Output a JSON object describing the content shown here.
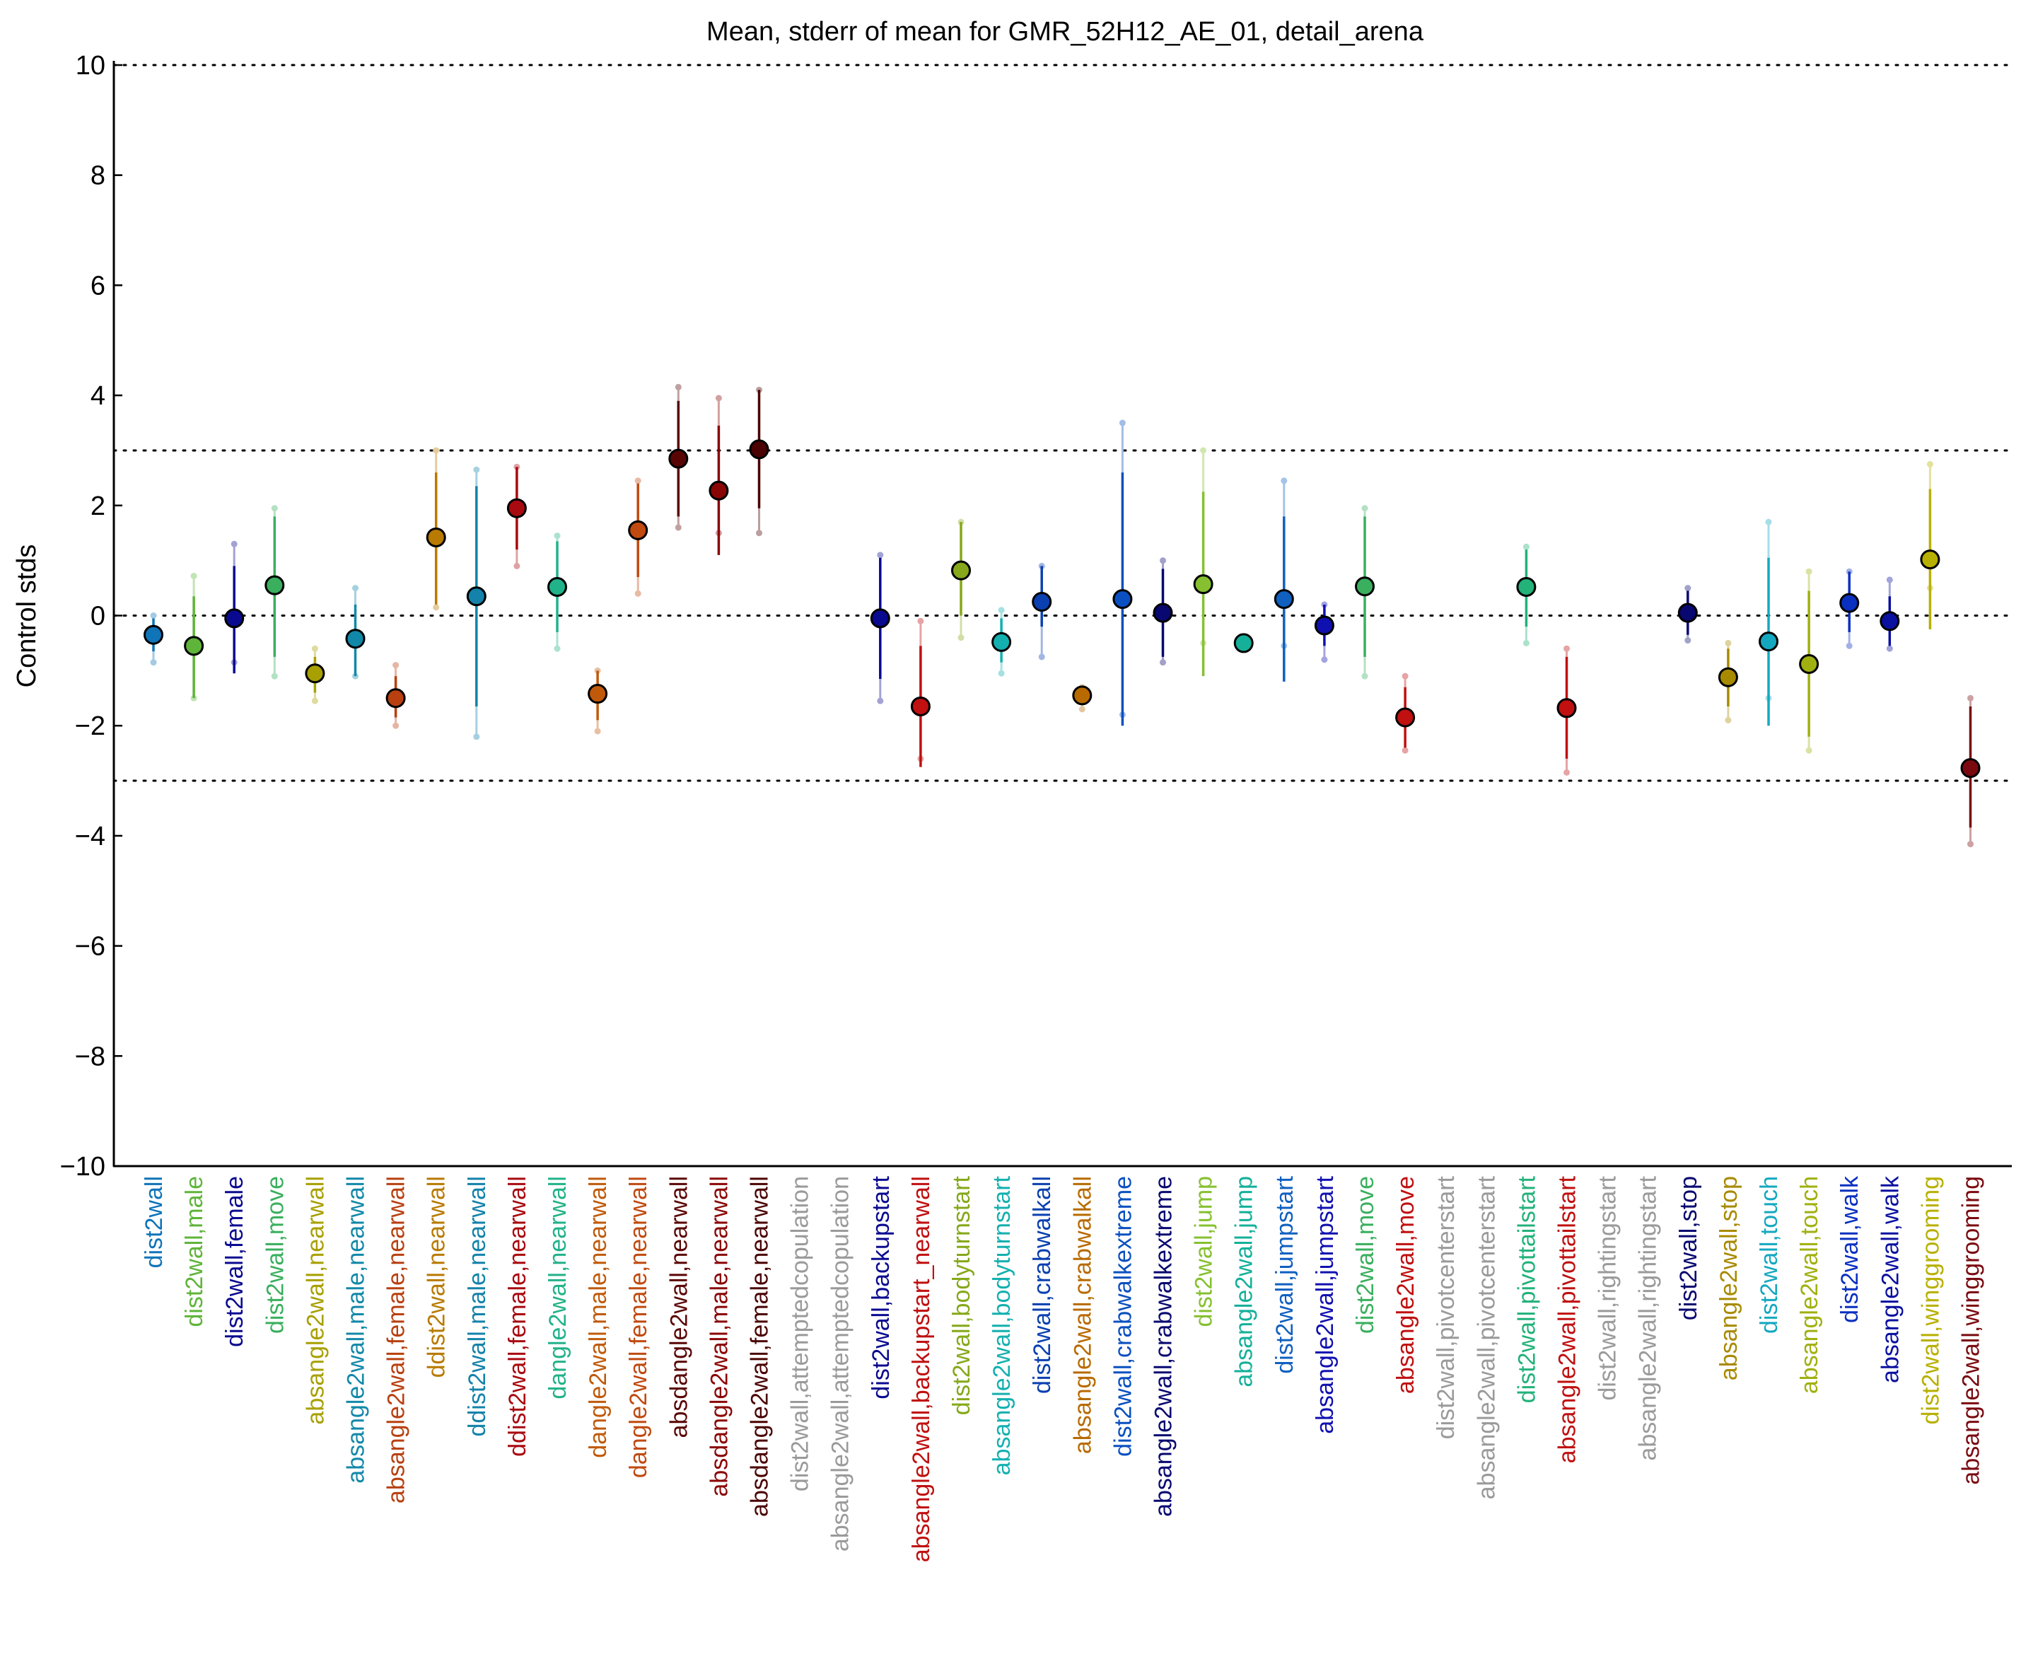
{
  "chart_data": {
    "type": "scatter",
    "title": "Mean, stderr of mean for GMR_52H12_AE_01, detail_arena",
    "ylabel": "Control stds",
    "xlabel": "",
    "ylim": [
      -10,
      10
    ],
    "yticks": [
      10,
      8,
      6,
      4,
      2,
      0,
      -2,
      -4,
      -6,
      -8,
      -10
    ],
    "ytick_labels": [
      "10",
      "8",
      "6",
      "4",
      "2",
      "0",
      "−2",
      "−4",
      "−6",
      "−8",
      "−10"
    ],
    "reference_lines": [
      10,
      3,
      0,
      -3,
      -10
    ],
    "grid": false,
    "points": [
      {
        "label": "dist2wall",
        "mean": -0.35,
        "err_lo": -0.65,
        "err_hi": -0.05,
        "ext_lo": -0.85,
        "ext_hi": 0.0,
        "color": "#0f74b8"
      },
      {
        "label": "dist2wall,male",
        "mean": -0.55,
        "err_lo": -1.5,
        "err_hi": 0.35,
        "ext_lo": -1.5,
        "ext_hi": 0.72,
        "color": "#5fb43a"
      },
      {
        "label": "dist2wall,female",
        "mean": -0.05,
        "err_lo": -1.05,
        "err_hi": 0.9,
        "ext_lo": -0.85,
        "ext_hi": 1.3,
        "color": "#0a0a90"
      },
      {
        "label": "dist2wall,move",
        "mean": 0.55,
        "err_lo": -0.75,
        "err_hi": 1.8,
        "ext_lo": -1.1,
        "ext_hi": 1.95,
        "color": "#3aaf5e"
      },
      {
        "label": "absangle2wall,nearwall",
        "mean": -1.05,
        "err_lo": -1.4,
        "err_hi": -0.75,
        "ext_lo": -1.55,
        "ext_hi": -0.6,
        "color": "#a8a000"
      },
      {
        "label": "absangle2wall,male,nearwall",
        "mean": -0.42,
        "err_lo": -1.1,
        "err_hi": 0.2,
        "ext_lo": -1.1,
        "ext_hi": 0.5,
        "color": "#1288a8"
      },
      {
        "label": "absangle2wall,female,nearwall",
        "mean": -1.5,
        "err_lo": -1.85,
        "err_hi": -1.1,
        "ext_lo": -2.0,
        "ext_hi": -0.9,
        "color": "#b84010"
      },
      {
        "label": "ddist2wall,nearwall",
        "mean": 1.42,
        "err_lo": 0.2,
        "err_hi": 2.6,
        "ext_lo": 0.15,
        "ext_hi": 3.0,
        "color": "#b87a00"
      },
      {
        "label": "ddist2wall,male,nearwall",
        "mean": 0.35,
        "err_lo": -1.65,
        "err_hi": 2.35,
        "ext_lo": -2.2,
        "ext_hi": 2.65,
        "color": "#1482aa"
      },
      {
        "label": "ddist2wall,female,nearwall",
        "mean": 1.95,
        "err_lo": 1.2,
        "err_hi": 2.7,
        "ext_lo": 0.9,
        "ext_hi": 2.7,
        "color": "#a80a10"
      },
      {
        "label": "dangle2wall,nearwall",
        "mean": 0.52,
        "err_lo": -0.3,
        "err_hi": 1.35,
        "ext_lo": -0.6,
        "ext_hi": 1.45,
        "color": "#22b28a"
      },
      {
        "label": "dangle2wall,male,nearwall",
        "mean": -1.42,
        "err_lo": -1.9,
        "err_hi": -1.0,
        "ext_lo": -2.1,
        "ext_hi": -1.0,
        "color": "#c05a0a"
      },
      {
        "label": "dangle2wall,female,nearwall",
        "mean": 1.55,
        "err_lo": 0.7,
        "err_hi": 2.4,
        "ext_lo": 0.4,
        "ext_hi": 2.45,
        "color": "#c04a10"
      },
      {
        "label": "absdangle2wall,nearwall",
        "mean": 2.85,
        "err_lo": 1.8,
        "err_hi": 3.9,
        "ext_lo": 1.6,
        "ext_hi": 4.15,
        "color": "#5a0505"
      },
      {
        "label": "absdangle2wall,male,nearwall",
        "mean": 2.27,
        "err_lo": 1.1,
        "err_hi": 3.45,
        "ext_lo": 1.5,
        "ext_hi": 3.95,
        "color": "#8a0505"
      },
      {
        "label": "absdangle2wall,female,nearwall",
        "mean": 3.02,
        "err_lo": 1.95,
        "err_hi": 4.1,
        "ext_lo": 1.5,
        "ext_hi": 4.1,
        "color": "#4a0202"
      },
      {
        "label": "dist2wall,attemptedcopulation",
        "mean": null,
        "color": "#9a9a9a"
      },
      {
        "label": "absangle2wall,attemptedcopulation",
        "mean": null,
        "color": "#9a9a9a"
      },
      {
        "label": "dist2wall,backupstart",
        "mean": -0.05,
        "err_lo": -1.15,
        "err_hi": 1.05,
        "ext_lo": -1.55,
        "ext_hi": 1.1,
        "color": "#0a0a90"
      },
      {
        "label": "absangle2wall,backupstart_nearwall",
        "mean": -1.65,
        "err_lo": -2.75,
        "err_hi": -0.55,
        "ext_lo": -2.6,
        "ext_hi": -0.1,
        "color": "#c01010"
      },
      {
        "label": "dist2wall,bodyturnstart",
        "mean": 0.82,
        "err_lo": 0.0,
        "err_hi": 1.7,
        "ext_lo": -0.4,
        "ext_hi": 1.7,
        "color": "#86a81a"
      },
      {
        "label": "absangle2wall,bodyturnstart",
        "mean": -0.48,
        "err_lo": -0.85,
        "err_hi": -0.05,
        "ext_lo": -1.05,
        "ext_hi": 0.1,
        "color": "#14b0b0"
      },
      {
        "label": "dist2wall,crabwalkall",
        "mean": 0.25,
        "err_lo": -0.2,
        "err_hi": 0.9,
        "ext_lo": -0.75,
        "ext_hi": 0.9,
        "color": "#0a40b0"
      },
      {
        "label": "absangle2wall,crabwalkall",
        "mean": -1.45,
        "err_lo": -1.6,
        "err_hi": -1.3,
        "ext_lo": -1.7,
        "ext_hi": -1.3,
        "color": "#b86a00"
      },
      {
        "label": "dist2wall,crabwalkextreme",
        "mean": 0.3,
        "err_lo": -2.0,
        "err_hi": 2.6,
        "ext_lo": -1.8,
        "ext_hi": 3.5,
        "color": "#0a50c0"
      },
      {
        "label": "absangle2wall,crabwalkextreme",
        "mean": 0.05,
        "err_lo": -0.75,
        "err_hi": 0.85,
        "ext_lo": -0.85,
        "ext_hi": 1.0,
        "color": "#080870"
      },
      {
        "label": "dist2wall,jump",
        "mean": 0.57,
        "err_lo": -1.1,
        "err_hi": 2.25,
        "ext_lo": -0.5,
        "ext_hi": 3.0,
        "color": "#86c030"
      },
      {
        "label": "absangle2wall,jump",
        "mean": -0.5,
        "err_lo": -0.6,
        "err_hi": -0.4,
        "ext_lo": -0.6,
        "ext_hi": -0.4,
        "color": "#14b09a"
      },
      {
        "label": "dist2wall,jumpstart",
        "mean": 0.3,
        "err_lo": -1.2,
        "err_hi": 1.8,
        "ext_lo": -0.55,
        "ext_hi": 2.45,
        "color": "#1060c0"
      },
      {
        "label": "absangle2wall,jumpstart",
        "mean": -0.18,
        "err_lo": -0.55,
        "err_hi": 0.2,
        "ext_lo": -0.8,
        "ext_hi": 0.2,
        "color": "#1010b0"
      },
      {
        "label": "dist2wall,move",
        "mean": 0.53,
        "err_lo": -0.75,
        "err_hi": 1.8,
        "ext_lo": -1.1,
        "ext_hi": 1.95,
        "color": "#3aaf5e"
      },
      {
        "label": "absangle2wall,move",
        "mean": -1.85,
        "err_lo": -2.4,
        "err_hi": -1.3,
        "ext_lo": -2.45,
        "ext_hi": -1.1,
        "color": "#c01010"
      },
      {
        "label": "dist2wall,pivotcenterstart",
        "mean": null,
        "color": "#9a9a9a"
      },
      {
        "label": "absangle2wall,pivotcenterstart",
        "mean": null,
        "color": "#9a9a9a"
      },
      {
        "label": "dist2wall,pivottailstart",
        "mean": 0.52,
        "err_lo": -0.2,
        "err_hi": 1.2,
        "ext_lo": -0.5,
        "ext_hi": 1.25,
        "color": "#22b27a"
      },
      {
        "label": "absangle2wall,pivottailstart",
        "mean": -1.68,
        "err_lo": -2.6,
        "err_hi": -0.75,
        "ext_lo": -2.85,
        "ext_hi": -0.6,
        "color": "#c01010"
      },
      {
        "label": "dist2wall,rightingstart",
        "mean": null,
        "color": "#9a9a9a"
      },
      {
        "label": "absangle2wall,rightingstart",
        "mean": null,
        "color": "#9a9a9a"
      },
      {
        "label": "dist2wall,stop",
        "mean": 0.05,
        "err_lo": -0.35,
        "err_hi": 0.45,
        "ext_lo": -0.45,
        "ext_hi": 0.5,
        "color": "#080870"
      },
      {
        "label": "absangle2wall,stop",
        "mean": -1.12,
        "err_lo": -1.65,
        "err_hi": -0.6,
        "ext_lo": -1.9,
        "ext_hi": -0.5,
        "color": "#a88a00"
      },
      {
        "label": "dist2wall,touch",
        "mean": -0.47,
        "err_lo": -2.0,
        "err_hi": 1.05,
        "ext_lo": -1.5,
        "ext_hi": 1.7,
        "color": "#14a8c0"
      },
      {
        "label": "absangle2wall,touch",
        "mean": -0.88,
        "err_lo": -2.2,
        "err_hi": 0.45,
        "ext_lo": -2.45,
        "ext_hi": 0.8,
        "color": "#a0b010"
      },
      {
        "label": "dist2wall,walk",
        "mean": 0.23,
        "err_lo": -0.3,
        "err_hi": 0.8,
        "ext_lo": -0.55,
        "ext_hi": 0.8,
        "color": "#0a30c0"
      },
      {
        "label": "absangle2wall,walk",
        "mean": -0.1,
        "err_lo": -0.55,
        "err_hi": 0.35,
        "ext_lo": -0.6,
        "ext_hi": 0.65,
        "color": "#0a10a0"
      },
      {
        "label": "dist2wall,winggrooming",
        "mean": 1.02,
        "err_lo": -0.25,
        "err_hi": 2.3,
        "ext_lo": 0.5,
        "ext_hi": 2.75,
        "color": "#b8b000"
      },
      {
        "label": "absangle2wall,winggrooming",
        "mean": -2.77,
        "err_lo": -3.85,
        "err_hi": -1.65,
        "ext_lo": -4.15,
        "ext_hi": -1.5,
        "color": "#7a0a10"
      }
    ]
  }
}
